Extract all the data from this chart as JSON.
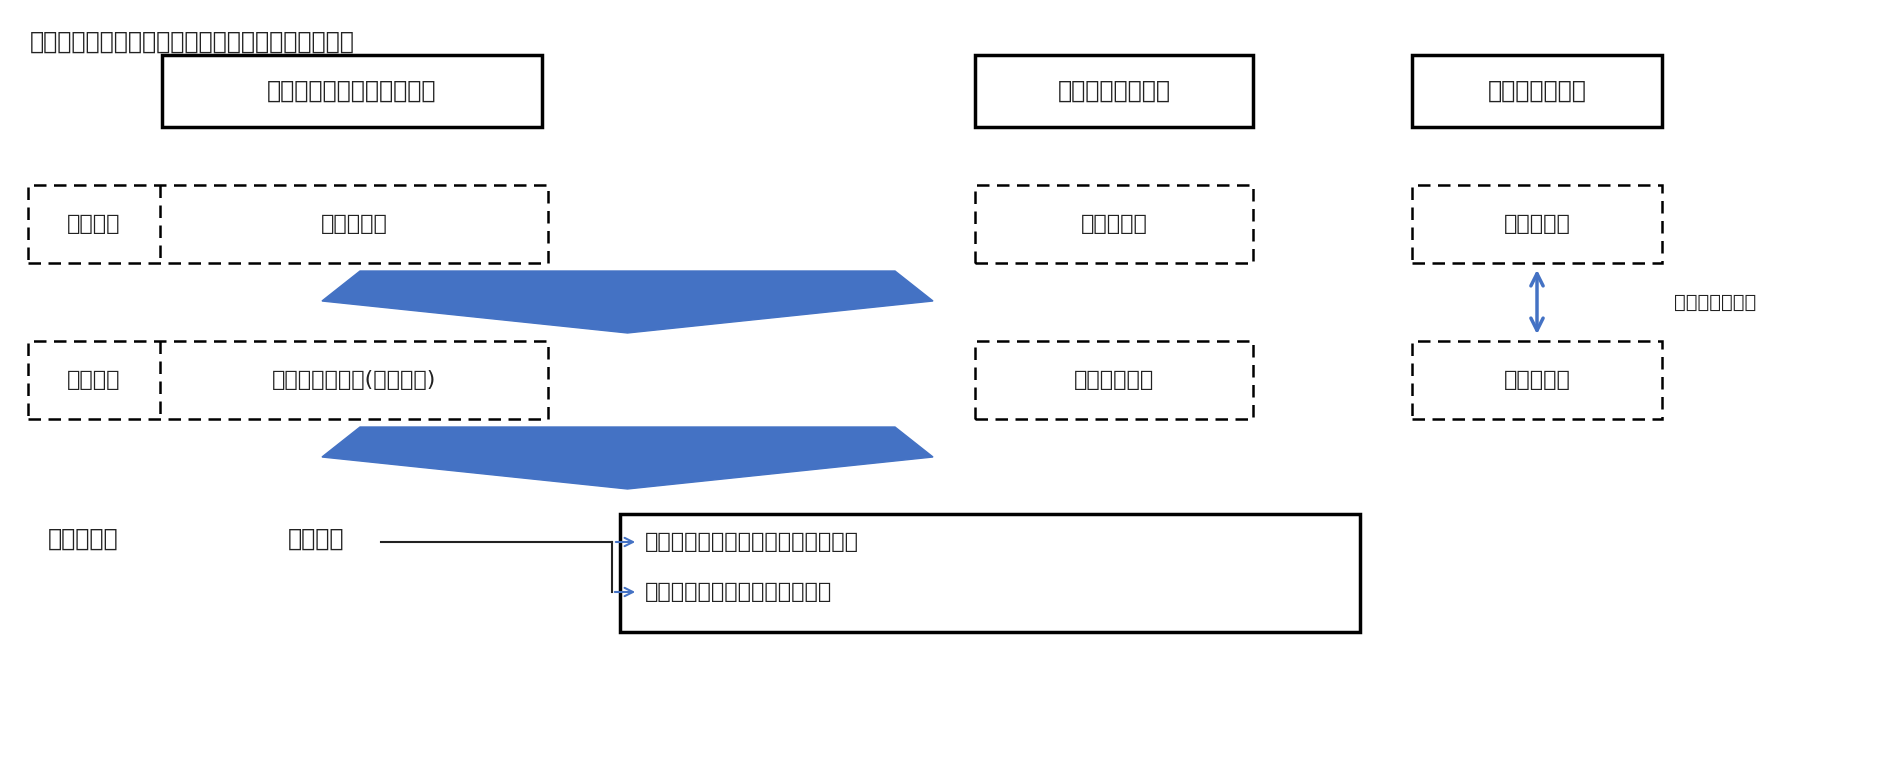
{
  "title": "【図表３】招集通知等の電子提供措置と発送・交付",
  "bg_color": "#ffffff",
  "text_color": "#222222",
  "arrow_color": "#4472c4",
  "box1_label": "招集通知（招集決定事項）",
  "box2_label": "株主総会参考書類",
  "box3_label": "議決権行使書面",
  "row1_left_label": "３週間前",
  "row1_cell1": "ウェブ掲示",
  "row1_cell2": "ウェブ掲示",
  "row1_cell3": "ウェブ掲示",
  "row2_left_label": "２週間前",
  "row2_cell1": "通知書面の発送(省略不可)",
  "row2_cell2": "書面交付不要",
  "row2_cell3": "書面で交付",
  "choose_label": "どちらかを選択",
  "bottom_label1": "総会開催日",
  "bottom_label2": "いずれか",
  "bottom_item1": "・書面（ウェブ）による議決権行使",
  "bottom_item2": "・総会に出席して議決権を行使",
  "figw": 18.98,
  "figh": 7.66,
  "dpi": 100
}
